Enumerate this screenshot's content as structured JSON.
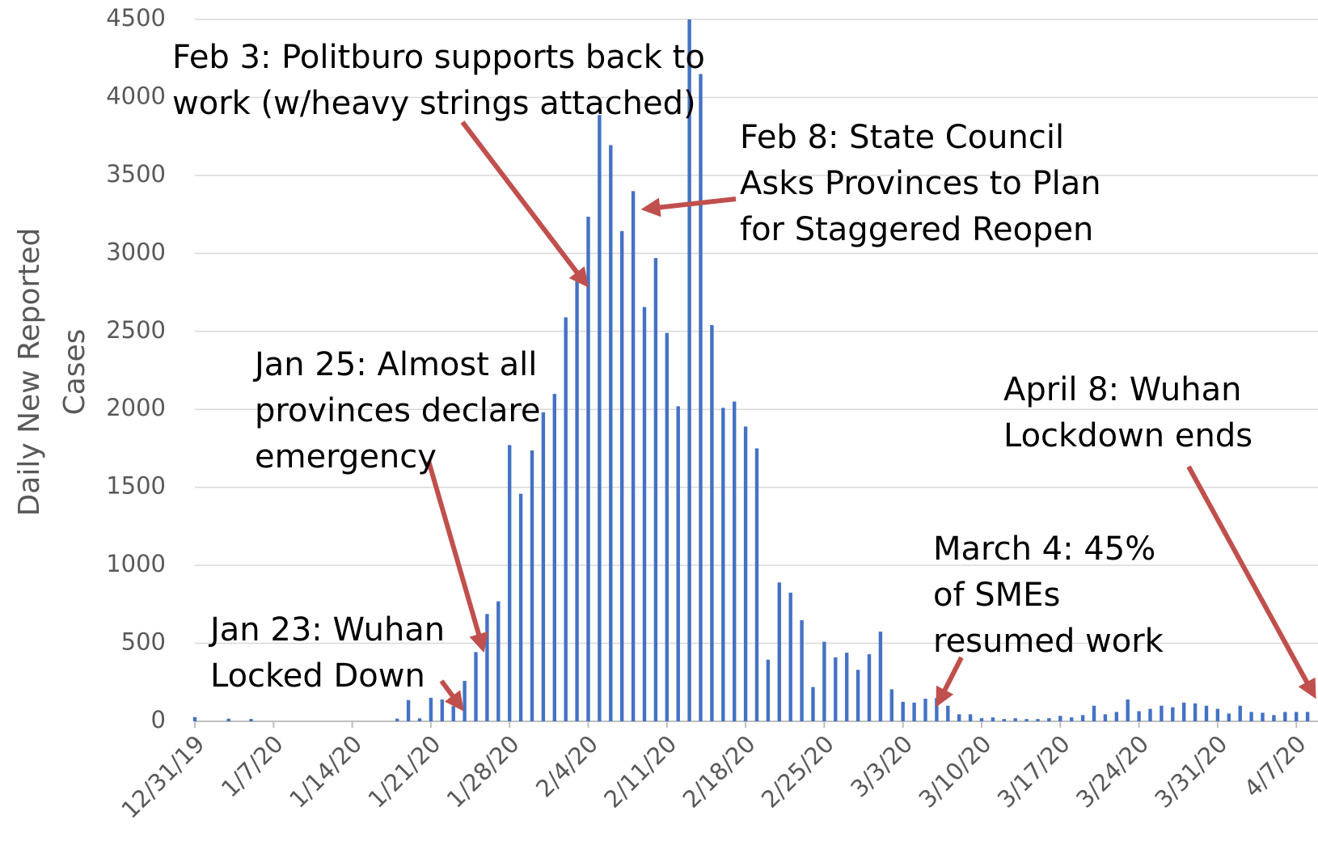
{
  "chart_data": {
    "type": "bar",
    "y_label": [
      "Daily New Reported",
      "Cases"
    ],
    "categories": [
      "12/31/19",
      null,
      null,
      null,
      null,
      null,
      null,
      "1/7/20",
      null,
      null,
      null,
      null,
      null,
      null,
      "1/14/20",
      null,
      null,
      null,
      null,
      null,
      null,
      "1/21/20",
      null,
      null,
      null,
      null,
      null,
      null,
      "1/28/20",
      null,
      null,
      null,
      null,
      null,
      null,
      "2/4/20",
      null,
      null,
      null,
      null,
      null,
      null,
      "2/11/20",
      null,
      null,
      null,
      null,
      null,
      null,
      "2/18/20",
      null,
      null,
      null,
      null,
      null,
      null,
      "2/25/20",
      null,
      null,
      null,
      null,
      null,
      null,
      "3/3/20",
      null,
      null,
      null,
      null,
      null,
      null,
      "3/10/20",
      null,
      null,
      null,
      null,
      null,
      null,
      "3/17/20",
      null,
      null,
      null,
      null,
      null,
      null,
      "3/24/20",
      null,
      null,
      null,
      null,
      null,
      null,
      "3/31/20",
      null,
      null,
      null,
      null,
      null,
      null,
      "4/7/20",
      null
    ],
    "values": [
      27,
      0,
      0,
      17,
      0,
      15,
      0,
      0,
      0,
      0,
      0,
      0,
      0,
      0,
      0,
      0,
      0,
      0,
      17,
      136,
      19,
      151,
      140,
      97,
      259,
      444,
      688,
      769,
      1771,
      1459,
      1737,
      1981,
      2099,
      2590,
      2829,
      3235,
      3887,
      3694,
      3143,
      3399,
      2656,
      2970,
      2490,
      2020,
      4500,
      4150,
      2540,
      2010,
      2050,
      1890,
      1750,
      395,
      890,
      825,
      648,
      220,
      510,
      410,
      440,
      330,
      430,
      575,
      205,
      125,
      120,
      145,
      150,
      100,
      45,
      45,
      20,
      25,
      15,
      20,
      15,
      15,
      20,
      35,
      25,
      40,
      100,
      45,
      60,
      140,
      65,
      80,
      100,
      90,
      120,
      115,
      100,
      80,
      50,
      100,
      60,
      55,
      40,
      60,
      60,
      60
    ],
    "color": "#4472c4",
    "ylim": [
      0,
      4500
    ],
    "yticks": [
      0,
      500,
      1000,
      1500,
      2000,
      2500,
      3000,
      3500,
      4000,
      4500
    ],
    "grid": true,
    "annotations": [
      {
        "text": [
          "Feb 3: Politburo supports back to",
          "work (w/heavy strings attached)"
        ]
      },
      {
        "text": [
          "Feb 8: State Council",
          "Asks Provinces to Plan",
          "for Staggered Reopen"
        ]
      },
      {
        "text": [
          "Jan 25: Almost all",
          "provinces declare",
          "emergency"
        ]
      },
      {
        "text": [
          "Jan 23: Wuhan",
          "Locked Down"
        ]
      },
      {
        "text": [
          "March 4: 45%",
          "of SMEs",
          "resumed work"
        ]
      },
      {
        "text": [
          "April 8: Wuhan",
          "Lockdown ends"
        ]
      }
    ]
  }
}
